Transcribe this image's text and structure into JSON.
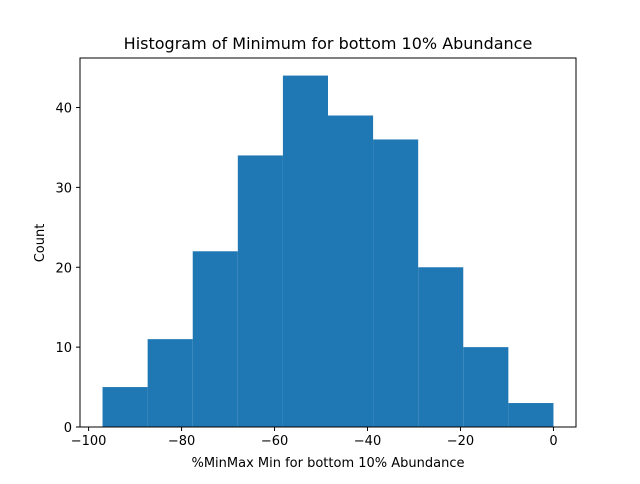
{
  "chart_data": {
    "type": "bar",
    "title": "Histogram of Minimum for bottom 10% Abundance",
    "xlabel": "%MinMax Min for bottom 10% Abundance",
    "ylabel": "Count",
    "bin_edges": [
      -97.0,
      -87.3,
      -77.6,
      -67.9,
      -58.2,
      -48.5,
      -38.8,
      -29.1,
      -19.4,
      -9.7,
      0.0
    ],
    "values": [
      5,
      11,
      22,
      34,
      44,
      39,
      36,
      20,
      10,
      3
    ],
    "xlim": [
      -101.85,
      4.85
    ],
    "ylim": [
      0,
      46.2
    ],
    "xticks": [
      -100,
      -80,
      -60,
      -40,
      -20,
      0
    ],
    "xtick_labels": [
      "−100",
      "−80",
      "−60",
      "−40",
      "−20",
      "0"
    ],
    "yticks": [
      0,
      10,
      20,
      30,
      40
    ],
    "ytick_labels": [
      "0",
      "10",
      "20",
      "30",
      "40"
    ],
    "bar_color": "#1f77b4",
    "grid": false
  }
}
